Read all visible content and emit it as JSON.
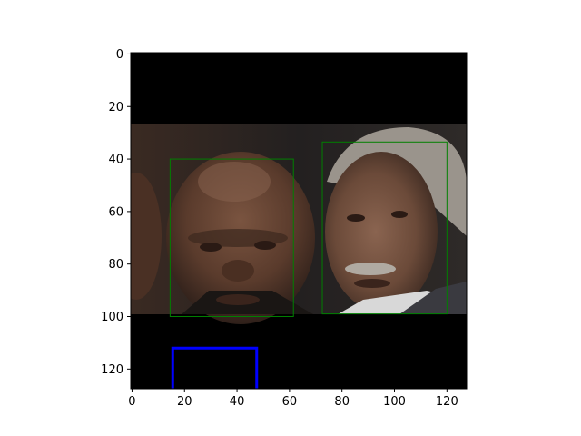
{
  "image": {
    "description_free": true,
    "extent_units": 128,
    "padding_top_rows": 27,
    "padding_bottom_rows": 100,
    "background_color": "#000000",
    "skin_tones": {
      "left_face": "#5a3b2c",
      "right_face": "#6b4a39",
      "backdrop": "#2a2624",
      "hair_right": "#9a948c",
      "dark_edge": "#1b1614"
    }
  },
  "axes": {
    "x_ticks": [
      {
        "value": 0,
        "label": "0"
      },
      {
        "value": 20,
        "label": "20"
      },
      {
        "value": 40,
        "label": "40"
      },
      {
        "value": 60,
        "label": "60"
      },
      {
        "value": 80,
        "label": "80"
      },
      {
        "value": 100,
        "label": "100"
      },
      {
        "value": 120,
        "label": "120"
      }
    ],
    "y_ticks": [
      {
        "value": 0,
        "label": "0"
      },
      {
        "value": 20,
        "label": "20"
      },
      {
        "value": 40,
        "label": "40"
      },
      {
        "value": 60,
        "label": "60"
      },
      {
        "value": 80,
        "label": "80"
      },
      {
        "value": 100,
        "label": "100"
      },
      {
        "value": 120,
        "label": "120"
      }
    ]
  },
  "boxes": [
    {
      "name": "face-box-left",
      "x0": 14.5,
      "y0": 40,
      "x1": 61.5,
      "y1": 100,
      "color": "#008000"
    },
    {
      "name": "face-box-right",
      "x0": 72.5,
      "y0": 33.5,
      "x1": 120,
      "y1": 99,
      "color": "#008000"
    }
  ],
  "partial_box": {
    "x0": 15.5,
    "y0": 112,
    "x1": 47.5,
    "y1": 128,
    "color": "#0000ff"
  }
}
